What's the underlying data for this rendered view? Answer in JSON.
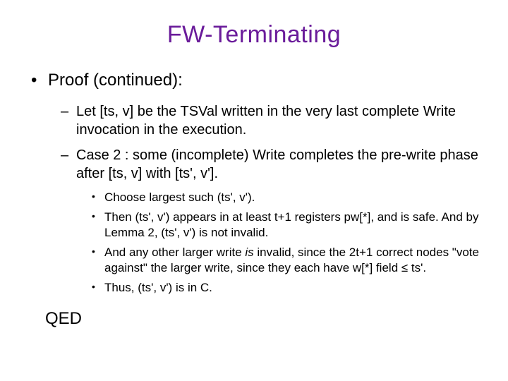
{
  "title_text": "FW-Terminating",
  "title_color": "#6a1b9a",
  "body_color": "#000000",
  "background_color": "#ffffff",
  "font_family": "Verdana, Geneva, sans-serif",
  "title_fontsize": 34,
  "lvl1_fontsize": 24,
  "lvl2_fontsize": 20,
  "lvl3_fontsize": 17,
  "lvl1_bullet": "•",
  "lvl2_bullet": "–",
  "lvl3_bullet": "•",
  "lvl1": [
    "Proof (continued):"
  ],
  "lvl2": [
    "Let [ts, v] be the TSVal written in the very last complete Write invocation in the execution.",
    "Case 2 : some (incomplete) Write completes the pre-write phase after [ts, v] with [ts', v']."
  ],
  "lvl3": [
    "Choose largest such (ts', v').",
    "Then (ts', v') appears in at least t+1 registers pw[*], and is safe.  And by Lemma 2, (ts', v') is not invalid.",
    {
      "pre": "And any other larger write ",
      "italic": "is",
      "post": " invalid, since the 2t+1 correct nodes \"vote against\" the larger write, since they each have w[*] field ≤ ts'."
    },
    "Thus, (ts', v') is in C."
  ],
  "qed": "QED"
}
